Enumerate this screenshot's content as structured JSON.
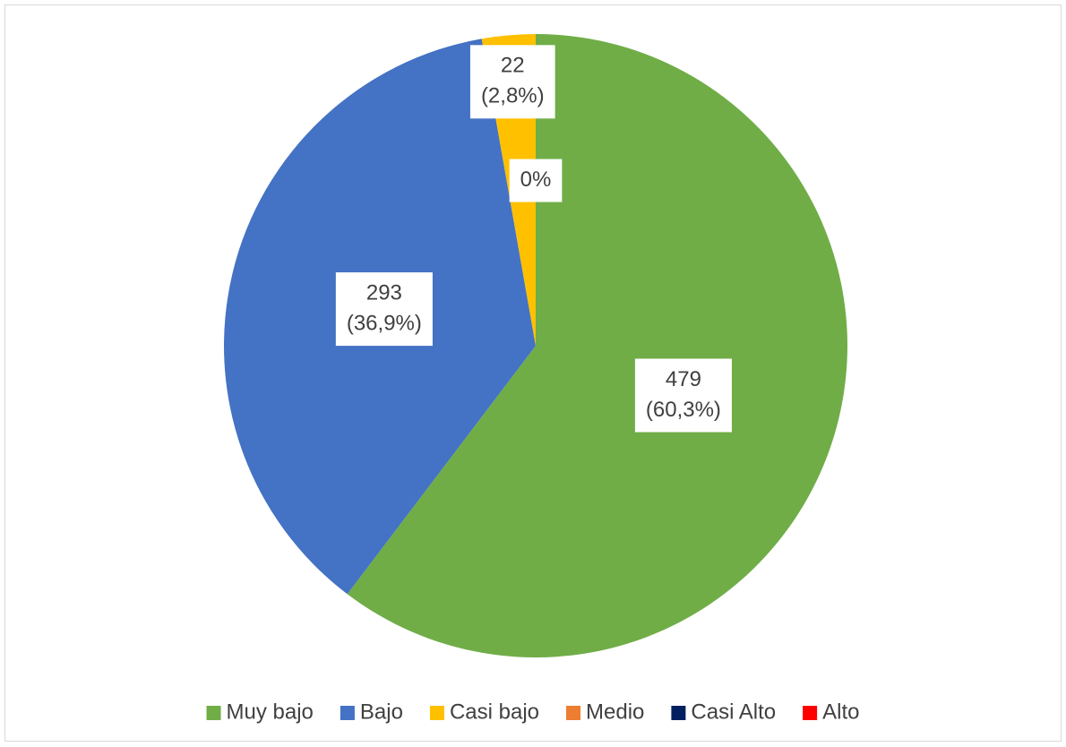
{
  "chart_data": {
    "type": "pie",
    "categories": [
      "Muy bajo",
      "Bajo",
      "Casi bajo",
      "Medio",
      "Casi Alto",
      "Alto"
    ],
    "values": [
      479,
      293,
      22,
      0,
      0,
      0
    ],
    "value_labels": [
      [
        "479",
        "(60,3%)"
      ],
      [
        "293",
        "(36,9%)"
      ],
      [
        "22",
        "(2,8%)"
      ],
      [
        "0%"
      ],
      null,
      null
    ],
    "colors": [
      "#70ad47",
      "#4472c4",
      "#ffc000",
      "#ed7d31",
      "#002060",
      "#ff0000"
    ],
    "legend": "bottom"
  }
}
